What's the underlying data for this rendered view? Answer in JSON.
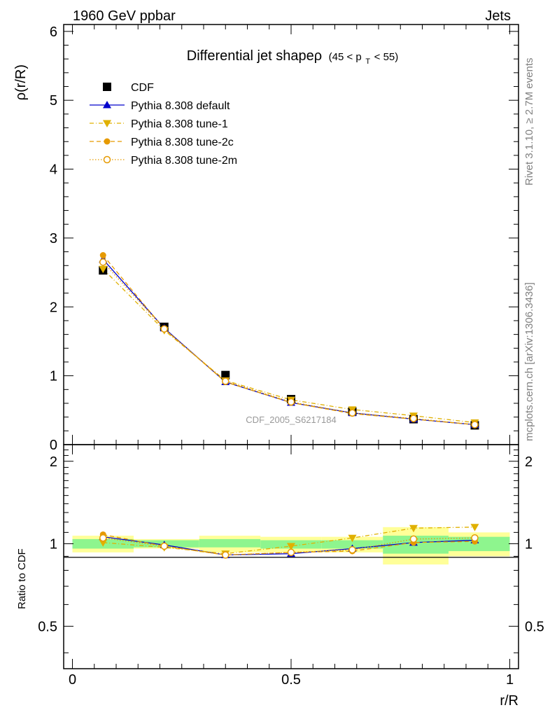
{
  "header": {
    "left_label": "1960 GeV ppbar",
    "right_label": "Jets",
    "analysis_id": "CDF_2005_S6217184",
    "side_label_top": "Rivet 3.1.10, ≥ 2.7M events",
    "side_label_bottom": "mcplots.cern.ch [arXiv:1306.3436]"
  },
  "chart_data": [
    {
      "type": "line",
      "title_main": "Differential jet shapeρ",
      "title_range_prefix": "(45 < p",
      "title_range_sub": "T",
      "title_range_suffix": " < 55)",
      "ylabel": "ρ(r/R)",
      "ylim": [
        0,
        6.1
      ],
      "yticks": [
        0,
        1,
        2,
        3,
        4,
        5,
        6
      ],
      "xlim": [
        -0.02,
        1.02
      ],
      "legend_position": "top-left",
      "x": [
        0.07,
        0.21,
        0.35,
        0.5,
        0.64,
        0.78,
        0.92
      ],
      "series": [
        {
          "name": "CDF",
          "marker": "square",
          "color": "#000000",
          "linestyle": "none",
          "values": [
            2.53,
            1.71,
            1.01,
            0.66,
            0.48,
            0.37,
            0.28
          ]
        },
        {
          "name": "Pythia 8.308 default",
          "marker": "triangle-up",
          "color": "#0000cc",
          "linestyle": "solid",
          "values": [
            2.69,
            1.69,
            0.91,
            0.61,
            0.46,
            0.37,
            0.29
          ]
        },
        {
          "name": "Pythia 8.308 tune-1",
          "marker": "triangle-down",
          "color": "#e0b000",
          "linestyle": "dashdot",
          "values": [
            2.55,
            1.66,
            0.93,
            0.65,
            0.51,
            0.42,
            0.32
          ]
        },
        {
          "name": "Pythia 8.308 tune-2c",
          "marker": "circle-filled",
          "color": "#e69a00",
          "linestyle": "dashed",
          "values": [
            2.75,
            1.68,
            0.91,
            0.61,
            0.45,
            0.37,
            0.29
          ]
        },
        {
          "name": "Pythia 8.308 tune-2m",
          "marker": "circle-open",
          "color": "#e69a00",
          "linestyle": "dotted",
          "values": [
            2.65,
            1.68,
            0.92,
            0.62,
            0.46,
            0.38,
            0.29
          ]
        }
      ]
    },
    {
      "type": "line",
      "xlabel": "r/R",
      "ylabel": "Ratio to CDF",
      "ylim": [
        0.35,
        2.3
      ],
      "yticks": [
        0.5,
        1,
        2
      ],
      "ytick_labels": [
        "0.5",
        "1",
        "2"
      ],
      "xlim": [
        -0.02,
        1.02
      ],
      "xticks": [
        0,
        0.5,
        1
      ],
      "xtick_labels": [
        "0",
        "0.5",
        "1"
      ],
      "reference_line": 1,
      "bins": [
        [
          0,
          0.14
        ],
        [
          0.14,
          0.29
        ],
        [
          0.29,
          0.43
        ],
        [
          0.43,
          0.57
        ],
        [
          0.57,
          0.71
        ],
        [
          0.71,
          0.86
        ],
        [
          0.86,
          1.0
        ]
      ],
      "band_inner": [
        [
          0.96,
          1.04
        ],
        [
          0.97,
          1.03
        ],
        [
          0.97,
          1.04
        ],
        [
          0.96,
          1.03
        ],
        [
          0.96,
          1.03
        ],
        [
          0.92,
          1.07
        ],
        [
          0.94,
          1.06
        ]
      ],
      "band_outer": [
        [
          0.93,
          1.07
        ],
        [
          0.96,
          1.04
        ],
        [
          0.93,
          1.07
        ],
        [
          0.93,
          1.06
        ],
        [
          0.93,
          1.06
        ],
        [
          0.84,
          1.15
        ],
        [
          0.9,
          1.1
        ]
      ],
      "band_colors": {
        "inner": "#8ef58e",
        "outer": "#ffff99"
      },
      "x": [
        0.07,
        0.21,
        0.35,
        0.5,
        0.64,
        0.78,
        0.92
      ],
      "series": [
        {
          "name": "Pythia 8.308 default",
          "marker": "triangle-up",
          "color": "#0000cc",
          "linestyle": "solid",
          "values": [
            1.06,
            0.99,
            0.91,
            0.92,
            0.96,
            1.01,
            1.03
          ]
        },
        {
          "name": "Pythia 8.308 tune-1",
          "marker": "triangle-down",
          "color": "#e0b000",
          "linestyle": "dashdot",
          "values": [
            1.01,
            0.97,
            0.92,
            0.98,
            1.05,
            1.14,
            1.15
          ]
        },
        {
          "name": "Pythia 8.308 tune-2c",
          "marker": "circle-filled",
          "color": "#e69a00",
          "linestyle": "dashed",
          "values": [
            1.08,
            0.98,
            0.91,
            0.93,
            0.94,
            1.01,
            1.02
          ]
        },
        {
          "name": "Pythia 8.308 tune-2m",
          "marker": "circle-open",
          "color": "#e69a00",
          "linestyle": "dotted",
          "values": [
            1.05,
            0.98,
            0.91,
            0.93,
            0.95,
            1.04,
            1.05
          ]
        }
      ]
    }
  ]
}
